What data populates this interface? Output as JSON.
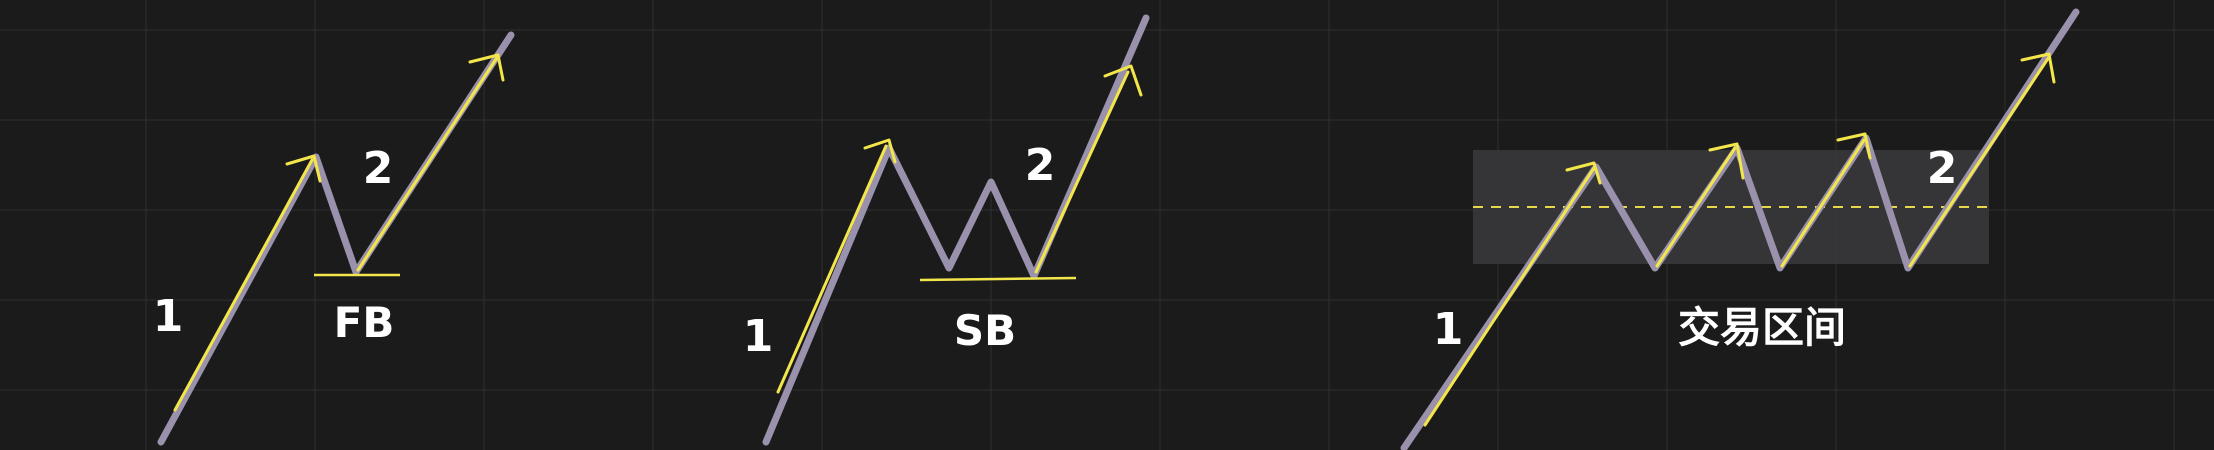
{
  "colors": {
    "background": "#1b1b1c",
    "grid": "#2f2f31",
    "price_path": "#9a92ad",
    "trend_arrow": "#f3e64a",
    "support_line": "#f3e64a",
    "range_box": "#3a3a3c",
    "range_mid": "#e6d84a",
    "label": "#ffffff"
  },
  "panels": [
    {
      "name": "fb",
      "leg_labels": [
        "1",
        "2"
      ],
      "pattern_label": "FB"
    },
    {
      "name": "sb",
      "leg_labels": [
        "1",
        "2"
      ],
      "pattern_label": "SB"
    },
    {
      "name": "range",
      "leg_labels": [
        "1",
        "2"
      ],
      "pattern_label": "交易区间"
    }
  ]
}
